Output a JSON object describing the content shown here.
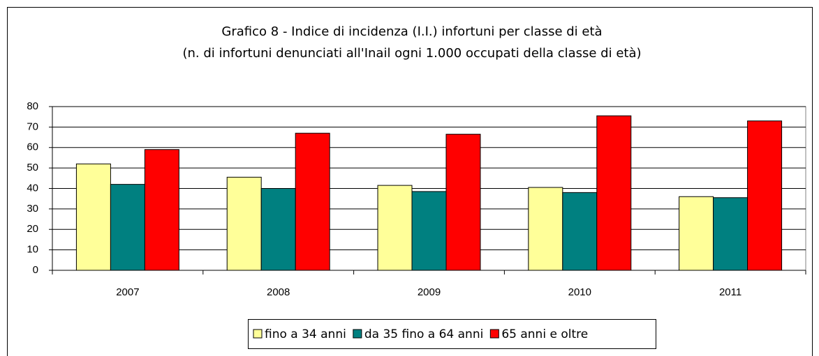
{
  "chart_data": {
    "type": "bar",
    "title": "Grafico 8 - Indice di incidenza (I.I.) infortuni per classe di età",
    "subtitle": "(n. di infortuni denunciati all'Inail ogni 1.000 occupati della classe di età)",
    "categories": [
      "2007",
      "2008",
      "2009",
      "2010",
      "2011"
    ],
    "series": [
      {
        "name": "fino a 34 anni",
        "color": "#ffff99",
        "values": [
          52,
          45.5,
          41.5,
          40.5,
          36
        ]
      },
      {
        "name": "da 35 fino a 64 anni",
        "color": "#008080",
        "values": [
          42,
          40,
          38.5,
          38,
          35.5
        ]
      },
      {
        "name": "65 anni e oltre",
        "color": "#ff0000",
        "values": [
          59,
          67,
          66.5,
          75.5,
          73
        ]
      }
    ],
    "ylim": [
      0,
      80
    ],
    "yticks": [
      0,
      10,
      20,
      30,
      40,
      50,
      60,
      70,
      80
    ],
    "grid": true,
    "legend": "bottom"
  }
}
